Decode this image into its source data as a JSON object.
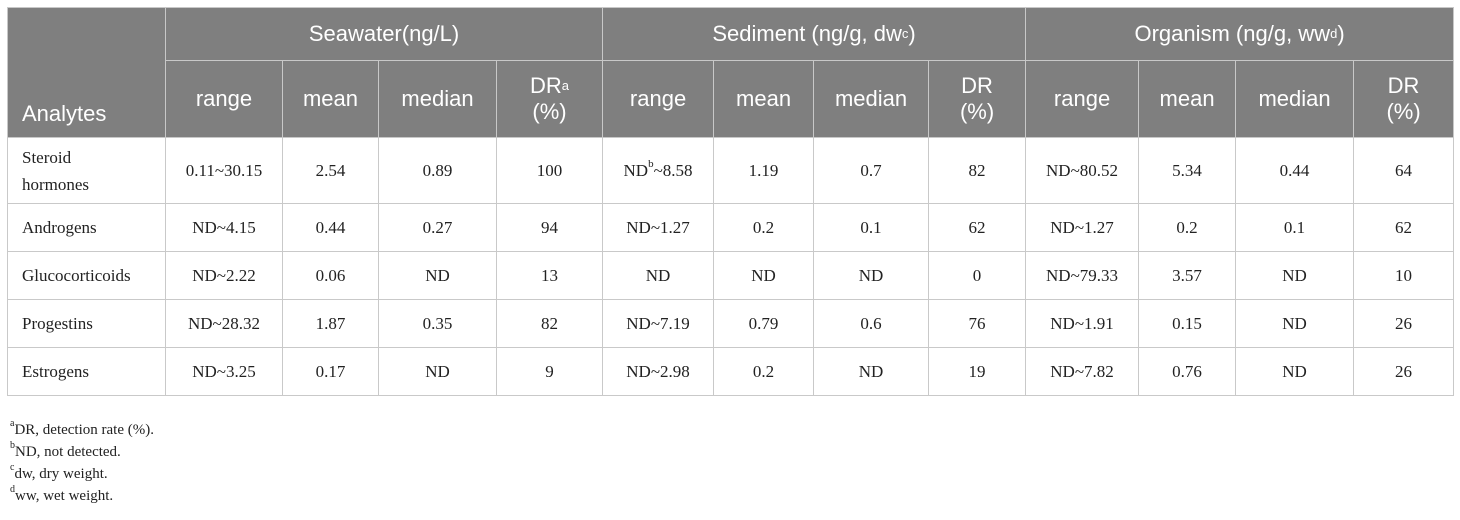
{
  "table": {
    "corner_label": "Analytes",
    "groups": [
      {
        "label": "Seawater(ng/L)",
        "sup": ""
      },
      {
        "label": "Sediment (ng/g, dw",
        "sup": "c",
        "suffix": ")"
      },
      {
        "label": "Organism (ng/g, ww",
        "sup": "d",
        "suffix": ")"
      }
    ],
    "subheaders": {
      "range": "range",
      "mean": "mean",
      "median": "median",
      "dr": "DR",
      "dr_unit": "(%)",
      "dr_sup": "a"
    },
    "rows": [
      {
        "name_line1": "Steroid",
        "name_line2": "hormones",
        "sw_range": "0.11~30.15",
        "sw_mean": "2.54",
        "sw_median": "0.89",
        "sw_dr": "100",
        "sd_range_pre": "ND",
        "sd_range_sup": "b",
        "sd_range_post": "~8.58",
        "sd_mean": "1.19",
        "sd_median": "0.7",
        "sd_dr": "82",
        "og_range": "ND~80.52",
        "og_mean": "5.34",
        "og_median": "0.44",
        "og_dr": "64"
      },
      {
        "name": "Androgens",
        "sw_range": "ND~4.15",
        "sw_mean": "0.44",
        "sw_median": "0.27",
        "sw_dr": "94",
        "sd_range": "ND~1.27",
        "sd_mean": "0.2",
        "sd_median": "0.1",
        "sd_dr": "62",
        "og_range": "ND~1.27",
        "og_mean": "0.2",
        "og_median": "0.1",
        "og_dr": "62"
      },
      {
        "name": "Glucocorticoids",
        "sw_range": "ND~2.22",
        "sw_mean": "0.06",
        "sw_median": "ND",
        "sw_dr": "13",
        "sd_range": "ND",
        "sd_mean": "ND",
        "sd_median": "ND",
        "sd_dr": "0",
        "og_range": "ND~79.33",
        "og_mean": "3.57",
        "og_median": "ND",
        "og_dr": "10"
      },
      {
        "name": "Progestins",
        "sw_range": "ND~28.32",
        "sw_mean": "1.87",
        "sw_median": "0.35",
        "sw_dr": "82",
        "sd_range": "ND~7.19",
        "sd_mean": "0.79",
        "sd_median": "0.6",
        "sd_dr": "76",
        "og_range": "ND~1.91",
        "og_mean": "0.15",
        "og_median": "ND",
        "og_dr": "26"
      },
      {
        "name": "Estrogens",
        "sw_range": "ND~3.25",
        "sw_mean": "0.17",
        "sw_median": "ND",
        "sw_dr": "9",
        "sd_range": "ND~2.98",
        "sd_mean": "0.2",
        "sd_median": "ND",
        "sd_dr": "19",
        "og_range": "ND~7.82",
        "og_mean": "0.76",
        "og_median": "ND",
        "og_dr": "26"
      }
    ]
  },
  "footnotes": [
    {
      "sup": "a",
      "text": "DR, detection rate (%)."
    },
    {
      "sup": "b",
      "text": "ND, not detected."
    },
    {
      "sup": "c",
      "text": "dw, dry weight."
    },
    {
      "sup": "d",
      "text": "ww, wet weight."
    }
  ]
}
